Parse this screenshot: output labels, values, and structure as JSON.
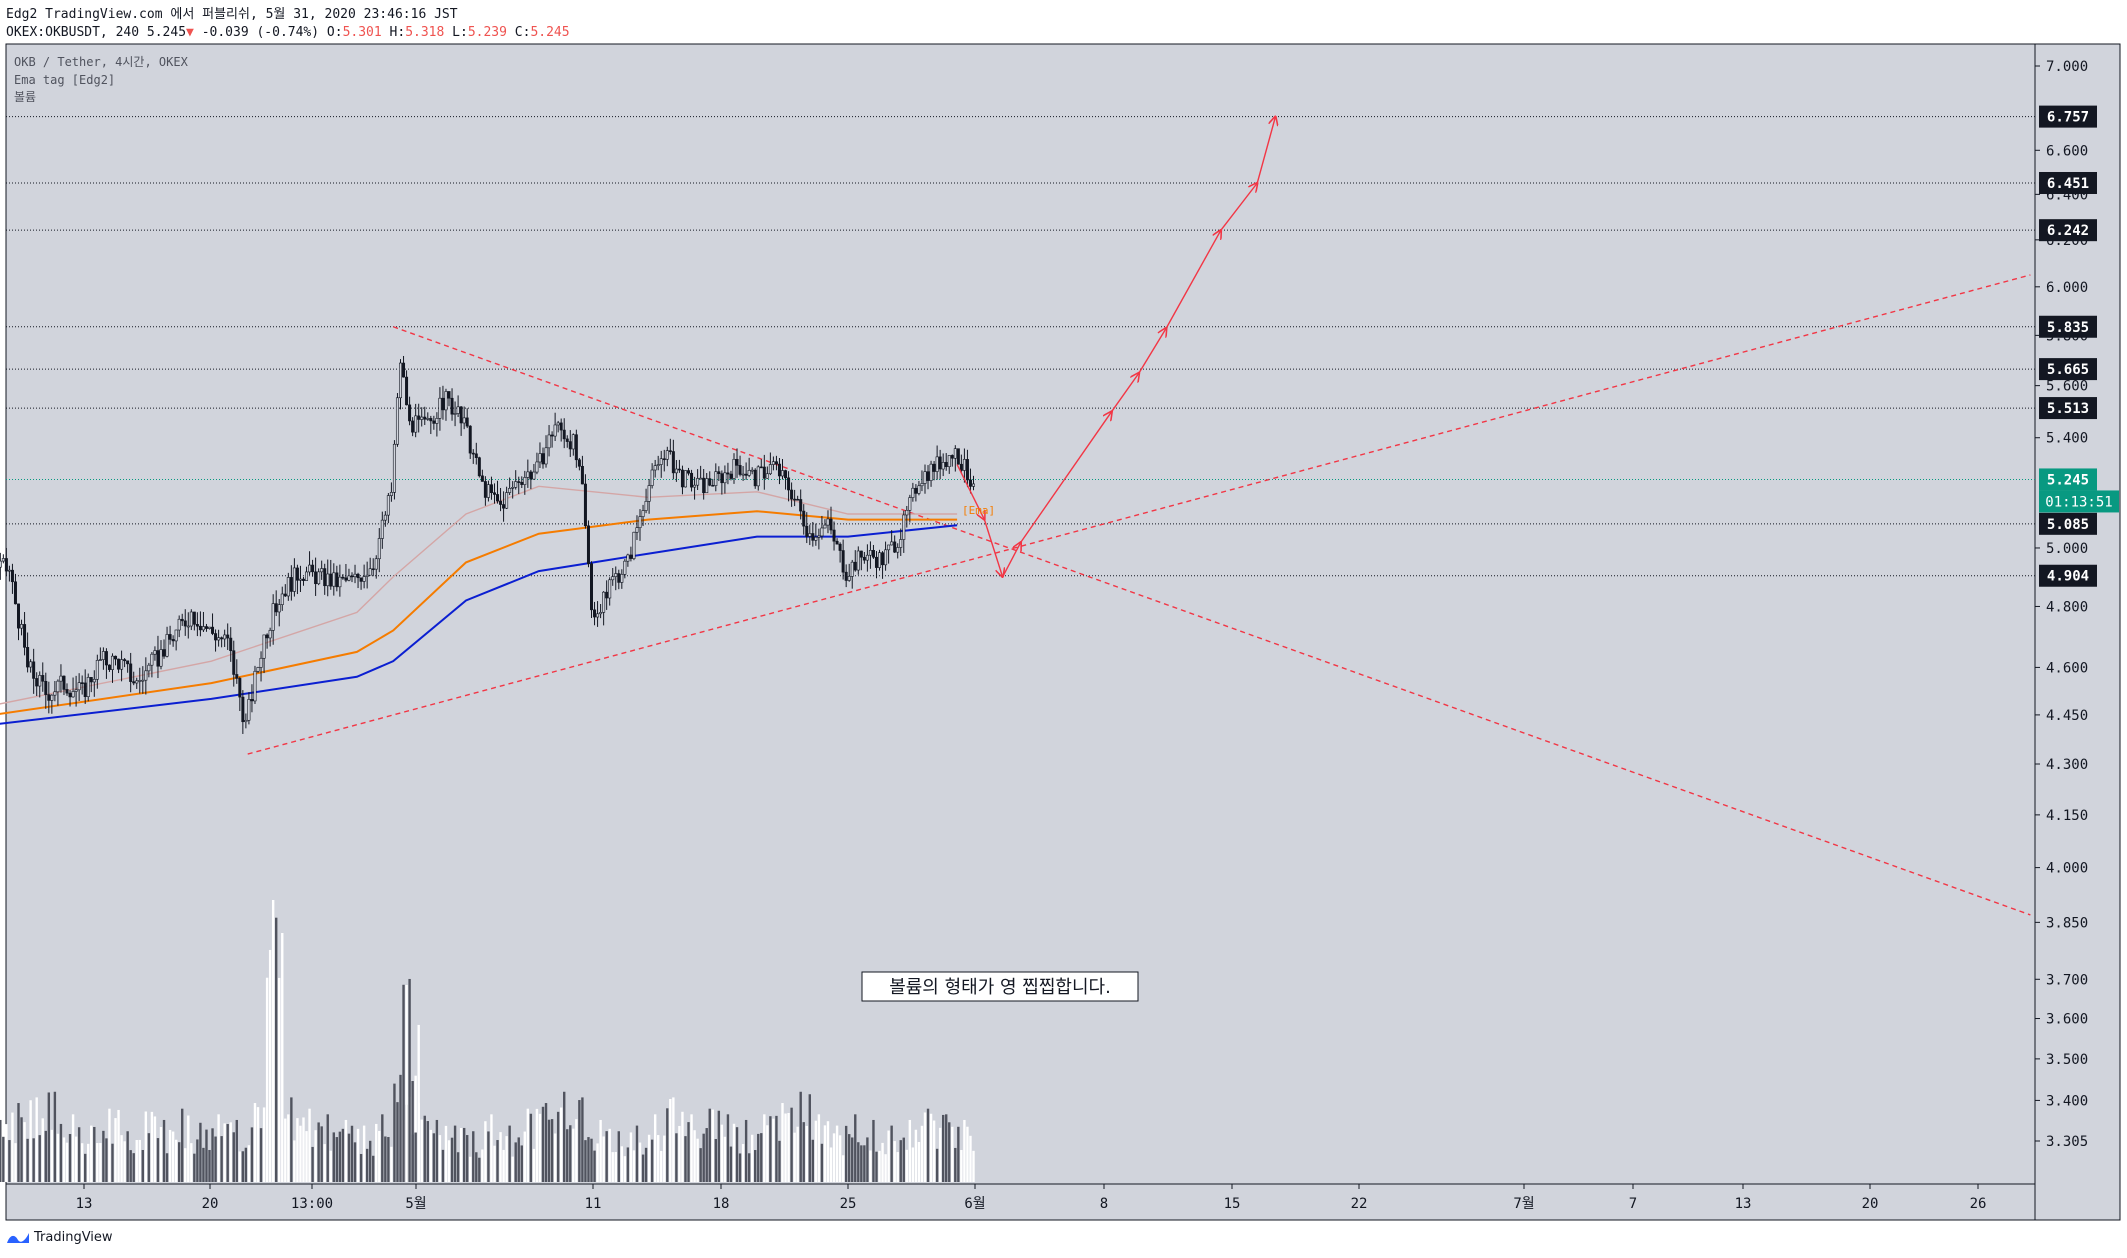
{
  "header": {
    "line1": "Edg2 TradingView.com 에서 퍼블리쉬, 5월 31, 2020 23:46:16 JST",
    "symbol": "OKEX:OKBUSDT, 240",
    "last": "5.245",
    "change": "-0.039 (-0.74%)",
    "o_label": "O:",
    "o": "5.301",
    "h_label": "H:",
    "h": "5.318",
    "l_label": "L:",
    "l": "5.239",
    "c_label": "C:",
    "c": "5.245"
  },
  "legend": {
    "line1": "OKB / Tether, 4시간, OKEX",
    "line2": "Ema tag [Edg2]",
    "line3": "볼륨"
  },
  "annotation": "볼륨의 형태가 영 찝찝합니다.",
  "ema_tag_label": "[Ema]",
  "footer": {
    "brand": "TradingView"
  },
  "colors": {
    "plot_bg": "#d1d4dc",
    "candle": "#131722",
    "volume": "#ffffff",
    "ema_slow": "#0b1fd1",
    "ema_mid": "#f57c00",
    "ema_fast": "#d4a6a6",
    "trend": "#f23645",
    "current_price": "#089981"
  },
  "chart_data": {
    "type": "candlestick",
    "symbol": "OKB / Tether",
    "timeframe": "4시간",
    "exchange": "OKEX",
    "y_scale": "log",
    "ylim": [
      3.25,
      7.1
    ],
    "y_ticks": [
      "7.000",
      "6.600",
      "6.400",
      "6.200",
      "6.000",
      "5.800",
      "5.600",
      "5.400",
      "5.000",
      "4.800",
      "4.600",
      "4.450",
      "4.300",
      "4.150",
      "4.000",
      "3.850",
      "3.700",
      "3.600",
      "3.500",
      "3.400",
      "3.305"
    ],
    "x_ticks": [
      "13",
      "20",
      "13:00",
      "5월",
      "11",
      "18",
      "25",
      "6월",
      "8",
      "15",
      "22",
      "7월",
      "7",
      "13",
      "20",
      "26"
    ],
    "price_line_labels": [
      "6.757",
      "6.451",
      "6.242",
      "5.835",
      "5.665",
      "5.513",
      "5.085",
      "4.904"
    ],
    "current_price": "5.245",
    "countdown": "01:13:51",
    "price_path": [
      [
        "04-08 00:00",
        4.95
      ],
      [
        "04-09 00:00",
        4.92
      ],
      [
        "04-10 00:00",
        4.6
      ],
      [
        "04-11 00:00",
        4.52
      ],
      [
        "04-12 00:00",
        4.55
      ],
      [
        "04-13 00:00",
        4.52
      ],
      [
        "04-14 00:00",
        4.62
      ],
      [
        "04-15 00:00",
        4.62
      ],
      [
        "04-16 00:00",
        4.55
      ],
      [
        "04-17 00:00",
        4.62
      ],
      [
        "04-18 00:00",
        4.7
      ],
      [
        "04-19 00:00",
        4.78
      ],
      [
        "04-20 00:00",
        4.72
      ],
      [
        "04-21 00:00",
        4.68
      ],
      [
        "04-22 00:00",
        4.42
      ],
      [
        "04-23 00:00",
        4.7
      ],
      [
        "04-24 00:00",
        4.85
      ],
      [
        "04-25 00:00",
        4.92
      ],
      [
        "04-26 00:00",
        4.9
      ],
      [
        "04-27 00:00",
        4.88
      ],
      [
        "04-28 00:00",
        4.89
      ],
      [
        "04-29 00:00",
        4.95
      ],
      [
        "04-30 00:00",
        5.2
      ],
      [
        "04-30 12:00",
        5.7
      ],
      [
        "05-01 00:00",
        5.45
      ],
      [
        "05-02 00:00",
        5.45
      ],
      [
        "05-03 00:00",
        5.55
      ],
      [
        "05-04 00:00",
        5.45
      ],
      [
        "05-05 00:00",
        5.22
      ],
      [
        "05-06 00:00",
        5.15
      ],
      [
        "05-07 00:00",
        5.25
      ],
      [
        "05-08 00:00",
        5.28
      ],
      [
        "05-09 00:00",
        5.45
      ],
      [
        "05-10 00:00",
        5.38
      ],
      [
        "05-10 12:00",
        5.2
      ],
      [
        "05-11 00:00",
        4.8
      ],
      [
        "05-11 12:00",
        4.78
      ],
      [
        "05-12 00:00",
        4.88
      ],
      [
        "05-13 00:00",
        4.95
      ],
      [
        "05-14 00:00",
        5.2
      ],
      [
        "05-15 00:00",
        5.35
      ],
      [
        "05-16 00:00",
        5.25
      ],
      [
        "05-17 00:00",
        5.22
      ],
      [
        "05-18 00:00",
        5.25
      ],
      [
        "05-19 00:00",
        5.3
      ],
      [
        "05-20 00:00",
        5.25
      ],
      [
        "05-21 00:00",
        5.3
      ],
      [
        "05-22 00:00",
        5.2
      ],
      [
        "05-23 00:00",
        5.05
      ],
      [
        "05-24 00:00",
        5.08
      ],
      [
        "05-25 00:00",
        4.92
      ],
      [
        "05-26 00:00",
        4.98
      ],
      [
        "05-27 00:00",
        4.96
      ],
      [
        "05-28 00:00",
        5.05
      ],
      [
        "05-29 00:00",
        5.25
      ],
      [
        "05-30 00:00",
        5.3
      ],
      [
        "05-31 00:00",
        5.35
      ],
      [
        "05-31 20:00",
        5.245
      ]
    ],
    "ema_fast": [
      [
        "04-08",
        4.48
      ],
      [
        "04-20",
        4.62
      ],
      [
        "04-28",
        4.78
      ],
      [
        "04-30",
        4.9
      ],
      [
        "05-04",
        5.12
      ],
      [
        "05-08",
        5.22
      ],
      [
        "05-14",
        5.18
      ],
      [
        "05-20",
        5.2
      ],
      [
        "05-25",
        5.12
      ],
      [
        "05-31",
        5.12
      ]
    ],
    "ema_mid": [
      [
        "04-08",
        4.45
      ],
      [
        "04-20",
        4.55
      ],
      [
        "04-28",
        4.65
      ],
      [
        "04-30",
        4.72
      ],
      [
        "05-04",
        4.95
      ],
      [
        "05-08",
        5.05
      ],
      [
        "05-14",
        5.1
      ],
      [
        "05-20",
        5.13
      ],
      [
        "05-25",
        5.1
      ],
      [
        "05-31",
        5.1
      ]
    ],
    "ema_slow": [
      [
        "04-08",
        4.42
      ],
      [
        "04-20",
        4.5
      ],
      [
        "04-28",
        4.57
      ],
      [
        "04-30",
        4.62
      ],
      [
        "05-04",
        4.82
      ],
      [
        "05-08",
        4.92
      ],
      [
        "05-14",
        4.98
      ],
      [
        "05-20",
        5.04
      ],
      [
        "05-25",
        5.04
      ],
      [
        "05-31",
        5.08
      ]
    ],
    "horizontal_levels": [
      6.757,
      6.451,
      6.242,
      5.835,
      5.665,
      5.513,
      5.245,
      5.085,
      4.904
    ],
    "trendlines": [
      {
        "name": "resistance",
        "style": "dashed",
        "from": [
          "04-30",
          5.835
        ],
        "to": [
          "07-29",
          3.87
        ]
      },
      {
        "name": "support",
        "style": "dashed",
        "from": [
          "04-22",
          4.33
        ],
        "to": [
          "07-29",
          6.05
        ]
      }
    ],
    "projection": {
      "style": "solid-arrows",
      "points": [
        [
          "05-31",
          5.3
        ],
        [
          "06-01 12:00",
          5.1
        ],
        [
          "06-02 12:00",
          4.9
        ],
        [
          "06-03 12:00",
          5.02
        ],
        [
          "06-08 12:00",
          5.5
        ],
        [
          "06-10",
          5.65
        ],
        [
          "06-11 12:00",
          5.83
        ],
        [
          "06-14 12:00",
          6.242
        ],
        [
          "06-16 12:00",
          6.451
        ],
        [
          "06-17 12:00",
          6.757
        ]
      ]
    },
    "volume_scale_max": 100,
    "volume": [
      [
        "04-08",
        22
      ],
      [
        "04-09",
        28
      ],
      [
        "04-10",
        30
      ],
      [
        "04-11",
        32
      ],
      [
        "04-12",
        24
      ],
      [
        "04-13",
        20
      ],
      [
        "04-14",
        26
      ],
      [
        "04-15",
        18
      ],
      [
        "04-16",
        25
      ],
      [
        "04-17",
        22
      ],
      [
        "04-18",
        26
      ],
      [
        "04-19",
        21
      ],
      [
        "04-20",
        24
      ],
      [
        "04-21",
        22
      ],
      [
        "04-22",
        28
      ],
      [
        "04-23",
        100
      ],
      [
        "04-24",
        30
      ],
      [
        "04-25",
        26
      ],
      [
        "04-26",
        24
      ],
      [
        "04-27",
        22
      ],
      [
        "04-28",
        20
      ],
      [
        "04-29",
        24
      ],
      [
        "04-30",
        38
      ],
      [
        "04-30 12:00",
        72
      ],
      [
        "05-01",
        28
      ],
      [
        "05-02",
        22
      ],
      [
        "05-03",
        20
      ],
      [
        "05-04",
        18
      ],
      [
        "05-05",
        24
      ],
      [
        "05-06",
        20
      ],
      [
        "05-07",
        26
      ],
      [
        "05-08",
        28
      ],
      [
        "05-09",
        32
      ],
      [
        "05-10",
        30
      ],
      [
        "05-11",
        22
      ],
      [
        "05-12",
        18
      ],
      [
        "05-13",
        20
      ],
      [
        "05-14",
        24
      ],
      [
        "05-15",
        30
      ],
      [
        "05-16",
        24
      ],
      [
        "05-17",
        26
      ],
      [
        "05-18",
        24
      ],
      [
        "05-19",
        22
      ],
      [
        "05-20",
        24
      ],
      [
        "05-21",
        28
      ],
      [
        "05-22",
        32
      ],
      [
        "05-23",
        24
      ],
      [
        "05-24",
        20
      ],
      [
        "05-25",
        24
      ],
      [
        "05-26",
        22
      ],
      [
        "05-27",
        20
      ],
      [
        "05-28",
        22
      ],
      [
        "05-29",
        26
      ],
      [
        "05-30",
        24
      ],
      [
        "05-31",
        22
      ]
    ]
  }
}
